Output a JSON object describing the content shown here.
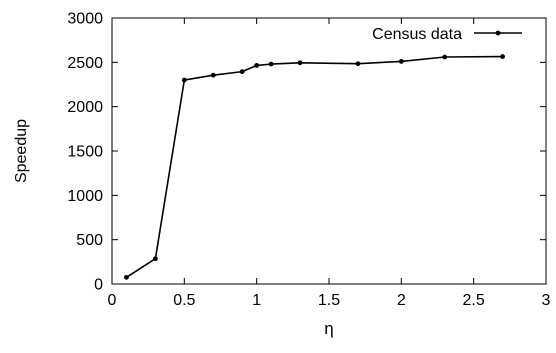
{
  "chart_data": {
    "type": "line",
    "title": "",
    "xlabel": "η",
    "ylabel": "Speedup",
    "xlim": [
      0,
      3
    ],
    "ylim": [
      0,
      3000
    ],
    "x_ticks": [
      0,
      0.5,
      1,
      1.5,
      2,
      2.5,
      3
    ],
    "x_tick_labels": [
      "0",
      "0.5",
      "1",
      "1.5",
      "2",
      "2.5",
      "3"
    ],
    "y_ticks": [
      0,
      500,
      1000,
      1500,
      2000,
      2500,
      3000
    ],
    "y_tick_labels": [
      "0",
      "500",
      "1000",
      "1500",
      "2000",
      "2500",
      "3000"
    ],
    "grid": false,
    "legend_position": "top-right",
    "series": [
      {
        "name": "Census data",
        "color": "#000000",
        "marker": "dot",
        "x": [
          0.1,
          0.3,
          0.5,
          0.7,
          0.9,
          1.0,
          1.1,
          1.3,
          1.7,
          2.0,
          2.3,
          2.7
        ],
        "y": [
          75,
          285,
          2300,
          2355,
          2395,
          2465,
          2480,
          2495,
          2485,
          2510,
          2560,
          2565
        ]
      }
    ]
  }
}
